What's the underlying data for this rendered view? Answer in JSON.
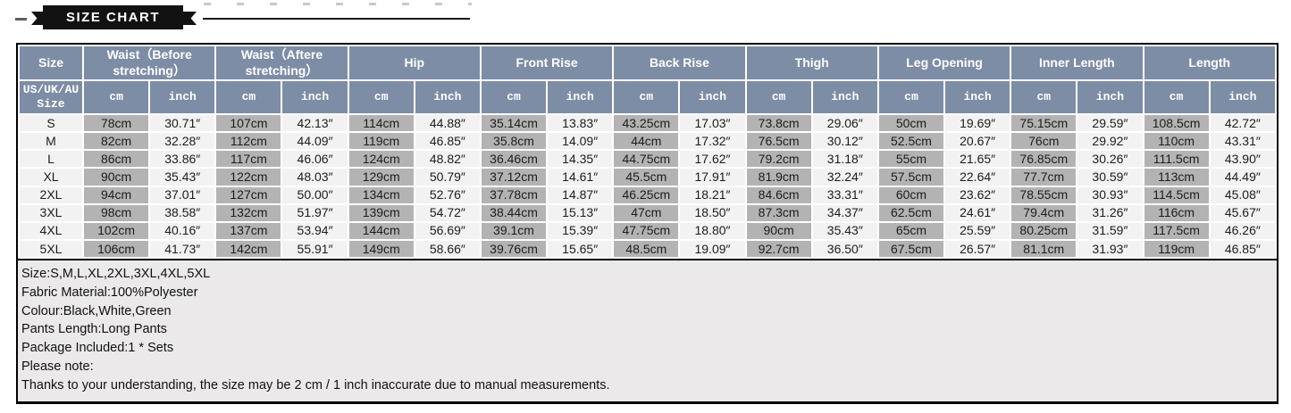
{
  "banner": {
    "title": "SIZE CHART"
  },
  "table": {
    "size_subheader": "US/UK/AU Size",
    "unit_headers": {
      "cm": "cm",
      "inch": "inch"
    },
    "groups": [
      {
        "id": "size",
        "label": "Size",
        "span": 1
      },
      {
        "id": "waist-before",
        "label": "Waist（Before stretching）",
        "span": 2
      },
      {
        "id": "waist-after",
        "label": "Waist（Aftere stretching）",
        "span": 2
      },
      {
        "id": "hip",
        "label": "Hip",
        "span": 2
      },
      {
        "id": "front-rise",
        "label": "Front Rise",
        "span": 2
      },
      {
        "id": "back-rise",
        "label": "Back Rise",
        "span": 2
      },
      {
        "id": "thigh",
        "label": "Thigh",
        "span": 2
      },
      {
        "id": "leg-opening",
        "label": "Leg Opening",
        "span": 2
      },
      {
        "id": "inner-length",
        "label": "Inner Length",
        "span": 2
      },
      {
        "id": "length",
        "label": "Length",
        "span": 2
      }
    ],
    "rows": [
      {
        "size": "S",
        "cells": [
          "78cm",
          "30.71″",
          "107cm",
          "42.13″",
          "114cm",
          "44.88″",
          "35.14cm",
          "13.83″",
          "43.25cm",
          "17.03″",
          "73.8cm",
          "29.06″",
          "50cm",
          "19.69″",
          "75.15cm",
          "29.59″",
          "108.5cm",
          "42.72″"
        ]
      },
      {
        "size": "M",
        "cells": [
          "82cm",
          "32.28″",
          "112cm",
          "44.09″",
          "119cm",
          "46.85″",
          "35.8cm",
          "14.09″",
          "44cm",
          "17.32″",
          "76.5cm",
          "30.12″",
          "52.5cm",
          "20.67″",
          "76cm",
          "29.92″",
          "110cm",
          "43.31″"
        ]
      },
      {
        "size": "L",
        "cells": [
          "86cm",
          "33.86″",
          "117cm",
          "46.06″",
          "124cm",
          "48.82″",
          "36.46cm",
          "14.35″",
          "44.75cm",
          "17.62″",
          "79.2cm",
          "31.18″",
          "55cm",
          "21.65″",
          "76.85cm",
          "30.26″",
          "111.5cm",
          "43.90″"
        ]
      },
      {
        "size": "XL",
        "cells": [
          "90cm",
          "35.43″",
          "122cm",
          "48.03″",
          "129cm",
          "50.79″",
          "37.12cm",
          "14.61″",
          "45.5cm",
          "17.91″",
          "81.9cm",
          "32.24″",
          "57.5cm",
          "22.64″",
          "77.7cm",
          "30.59″",
          "113cm",
          "44.49″"
        ]
      },
      {
        "size": "2XL",
        "cells": [
          "94cm",
          "37.01″",
          "127cm",
          "50.00″",
          "134cm",
          "52.76″",
          "37.78cm",
          "14.87″",
          "46.25cm",
          "18.21″",
          "84.6cm",
          "33.31″",
          "60cm",
          "23.62″",
          "78.55cm",
          "30.93″",
          "114.5cm",
          "45.08″"
        ]
      },
      {
        "size": "3XL",
        "cells": [
          "98cm",
          "38.58″",
          "132cm",
          "51.97″",
          "139cm",
          "54.72″",
          "38.44cm",
          "15.13″",
          "47cm",
          "18.50″",
          "87.3cm",
          "34.37″",
          "62.5cm",
          "24.61″",
          "79.4cm",
          "31.26″",
          "116cm",
          "45.67″"
        ]
      },
      {
        "size": "4XL",
        "cells": [
          "102cm",
          "40.16″",
          "137cm",
          "53.94″",
          "144cm",
          "56.69″",
          "39.1cm",
          "15.39″",
          "47.75cm",
          "18.80″",
          "90cm",
          "35.43″",
          "65cm",
          "25.59″",
          "80.25cm",
          "31.59″",
          "117.5cm",
          "46.26″"
        ]
      },
      {
        "size": "5XL",
        "cells": [
          "106cm",
          "41.73″",
          "142cm",
          "55.91″",
          "149cm",
          "58.66″",
          "39.76cm",
          "15.65″",
          "48.5cm",
          "19.09″",
          "92.7cm",
          "36.50″",
          "67.5cm",
          "26.57″",
          "81.1cm",
          "31.93″",
          "119cm",
          "46.85″"
        ]
      }
    ]
  },
  "notes": {
    "lines": [
      "Size:S,M,L,XL,2XL,3XL,4XL,5XL",
      "Fabric Material:100%Polyester",
      "Colour:Black,White,Green",
      "Pants Length:Long Pants",
      "Package Included:1 * Sets",
      "Please note:",
      "Thanks to your understanding, the size may be 2 cm / 1 inch inaccurate due to manual measurements."
    ]
  },
  "colors": {
    "header_bg": "#7e8da6",
    "cm_cell_bg": "#b3b3b3",
    "inch_cell_bg": "#f2f2f2",
    "notes_bg": "#ebe9e9",
    "banner_bg": "#121212",
    "border": "#000000"
  }
}
